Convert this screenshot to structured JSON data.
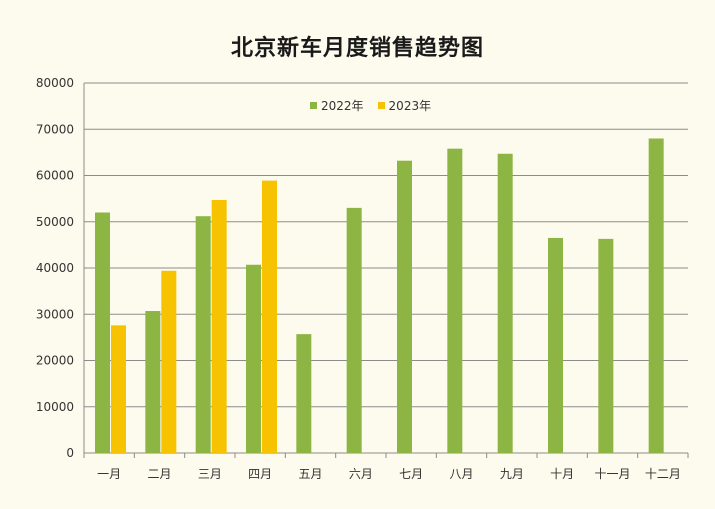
{
  "chart_data": {
    "type": "bar",
    "title": "北京新车月度销售趋势图",
    "categories": [
      "一月",
      "二月",
      "三月",
      "四月",
      "五月",
      "六月",
      "七月",
      "八月",
      "九月",
      "十月",
      "十一月",
      "十二月"
    ],
    "series": [
      {
        "name": "2022年",
        "color": "#8db543",
        "values": [
          52000,
          30700,
          51200,
          40700,
          25700,
          53000,
          63200,
          65800,
          64700,
          46500,
          46300,
          68000
        ]
      },
      {
        "name": "2023年",
        "color": "#f7c200",
        "values": [
          27600,
          39400,
          54700,
          58900,
          null,
          null,
          null,
          null,
          null,
          null,
          null,
          null
        ]
      }
    ],
    "ylim": [
      0,
      80000
    ],
    "yticks": [
      "0",
      "10000",
      "20000",
      "30000",
      "40000",
      "50000",
      "60000",
      "70000",
      "80000"
    ],
    "grid": true,
    "legend_position": "top-center"
  }
}
